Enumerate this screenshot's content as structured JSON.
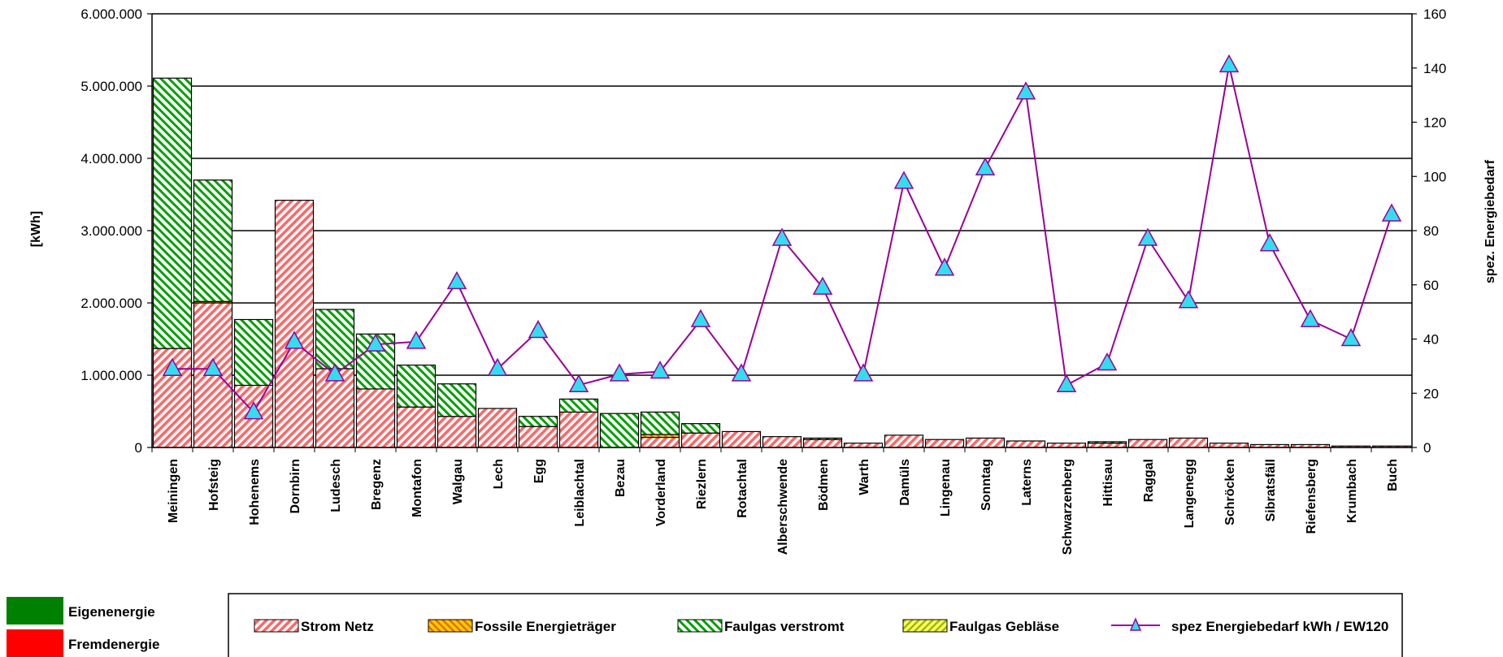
{
  "chart_data": {
    "type": "bar",
    "stacked": true,
    "categories": [
      "Meiningen",
      "Hofsteig",
      "Hohenems",
      "Dornbirn",
      "Ludesch",
      "Bregenz",
      "Montafon",
      "Walgau",
      "Lech",
      "Egg",
      "Leiblachtal",
      "Bezau",
      "Vorderland",
      "Riezlern",
      "Rotachtal",
      "Alberschwende",
      "Bödmen",
      "Warth",
      "Damüls",
      "Lingenau",
      "Sonntag",
      "Laterns",
      "Schwarzenberg",
      "Hittisau",
      "Raggal",
      "Langenegg",
      "Schröcken",
      "Sibratsfäll",
      "Riefensberg",
      "Krumbach",
      "Buch"
    ],
    "series": [
      {
        "name": "Strom Netz",
        "type": "bar",
        "axis": "left",
        "color": "#FF6666",
        "pattern": "hatch-up",
        "values": [
          1370000,
          2000000,
          860000,
          3420000,
          1090000,
          810000,
          560000,
          430000,
          540000,
          290000,
          490000,
          0,
          140000,
          200000,
          220000,
          150000,
          110000,
          60000,
          170000,
          110000,
          130000,
          90000,
          60000,
          60000,
          110000,
          130000,
          60000,
          40000,
          40000,
          20000,
          20000
        ]
      },
      {
        "name": "Fossile Energieträger",
        "type": "bar",
        "axis": "left",
        "color": "#FFA500",
        "pattern": "hatch-down",
        "values": [
          0,
          20000,
          0,
          0,
          0,
          0,
          0,
          0,
          0,
          0,
          0,
          0,
          40000,
          0,
          0,
          0,
          0,
          0,
          0,
          0,
          0,
          0,
          0,
          0,
          0,
          0,
          0,
          0,
          0,
          0,
          0
        ]
      },
      {
        "name": "Faulgas verstromt",
        "type": "bar",
        "axis": "left",
        "color": "#00A000",
        "pattern": "hatch-down",
        "values": [
          3740000,
          1680000,
          910000,
          0,
          820000,
          760000,
          580000,
          450000,
          0,
          140000,
          180000,
          470000,
          310000,
          130000,
          0,
          0,
          20000,
          0,
          0,
          0,
          0,
          0,
          0,
          20000,
          0,
          0,
          0,
          0,
          0,
          0,
          0
        ]
      },
      {
        "name": "Faulgas Gebläse",
        "type": "bar",
        "axis": "left",
        "color": "#CCDD00",
        "pattern": "hatch-up",
        "values": [
          0,
          0,
          0,
          0,
          0,
          0,
          0,
          0,
          0,
          0,
          0,
          0,
          0,
          0,
          0,
          0,
          0,
          0,
          0,
          0,
          0,
          0,
          0,
          0,
          0,
          0,
          0,
          0,
          0,
          0,
          0
        ]
      },
      {
        "name": "spez Energiebedarf kWh / EW120",
        "type": "line",
        "axis": "right",
        "color": "#990099",
        "marker": "triangle",
        "marker_color": "#33DDEE",
        "values": [
          29,
          29,
          13,
          39,
          27,
          38,
          39,
          61,
          29,
          43,
          23,
          27,
          28,
          47,
          27,
          77,
          59,
          27,
          98,
          66,
          103,
          131,
          23,
          31,
          77,
          54,
          141,
          75,
          47,
          40,
          86
        ]
      }
    ],
    "y_left": {
      "label": "[kWh]",
      "min": 0,
      "max": 6000000,
      "ticks": [
        "0",
        "1.000.000",
        "2.000.000",
        "3.000.000",
        "4.000.000",
        "5.000.000",
        "6.000.000"
      ]
    },
    "y_right": {
      "label": "spez. Energiebedarf",
      "min": 0,
      "max": 160,
      "ticks": [
        "0",
        "20",
        "40",
        "60",
        "80",
        "100",
        "120",
        "140",
        "160"
      ]
    },
    "grid": true,
    "legend_position": "bottom",
    "extra_legend": [
      {
        "label": "Eigenenergie",
        "color": "#008000"
      },
      {
        "label": "Fremdenergie",
        "color": "#FF0000"
      }
    ]
  }
}
